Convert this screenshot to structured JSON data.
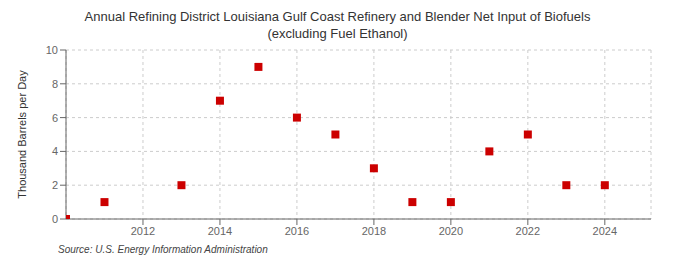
{
  "chart_data": {
    "type": "scatter",
    "title": "Annual Refining District Louisiana Gulf Coast Refinery and Blender Net Input of Biofuels",
    "subtitle": "(excluding Fuel Ethanol)",
    "y_label": "Thousand Barrels per Day",
    "annotations": [
      "Source: U.S. Energy Information Administration"
    ],
    "x": [
      2010,
      2011,
      2013,
      2014,
      2015,
      2016,
      2017,
      2018,
      2019,
      2020,
      2021,
      2022,
      2023,
      2024
    ],
    "values": [
      0,
      1,
      2,
      7,
      9,
      6,
      5,
      3,
      1,
      1,
      4,
      5,
      2,
      2
    ],
    "xlim": [
      2010.0,
      2025.2
    ],
    "ylim": [
      0,
      10
    ],
    "xticks": [
      2012,
      2014,
      2016,
      2018,
      2020,
      2022,
      2024
    ],
    "yticks": [
      0,
      2,
      4,
      6,
      8,
      10
    ],
    "color": "#cc0000",
    "marker": "square",
    "grid": true
  }
}
